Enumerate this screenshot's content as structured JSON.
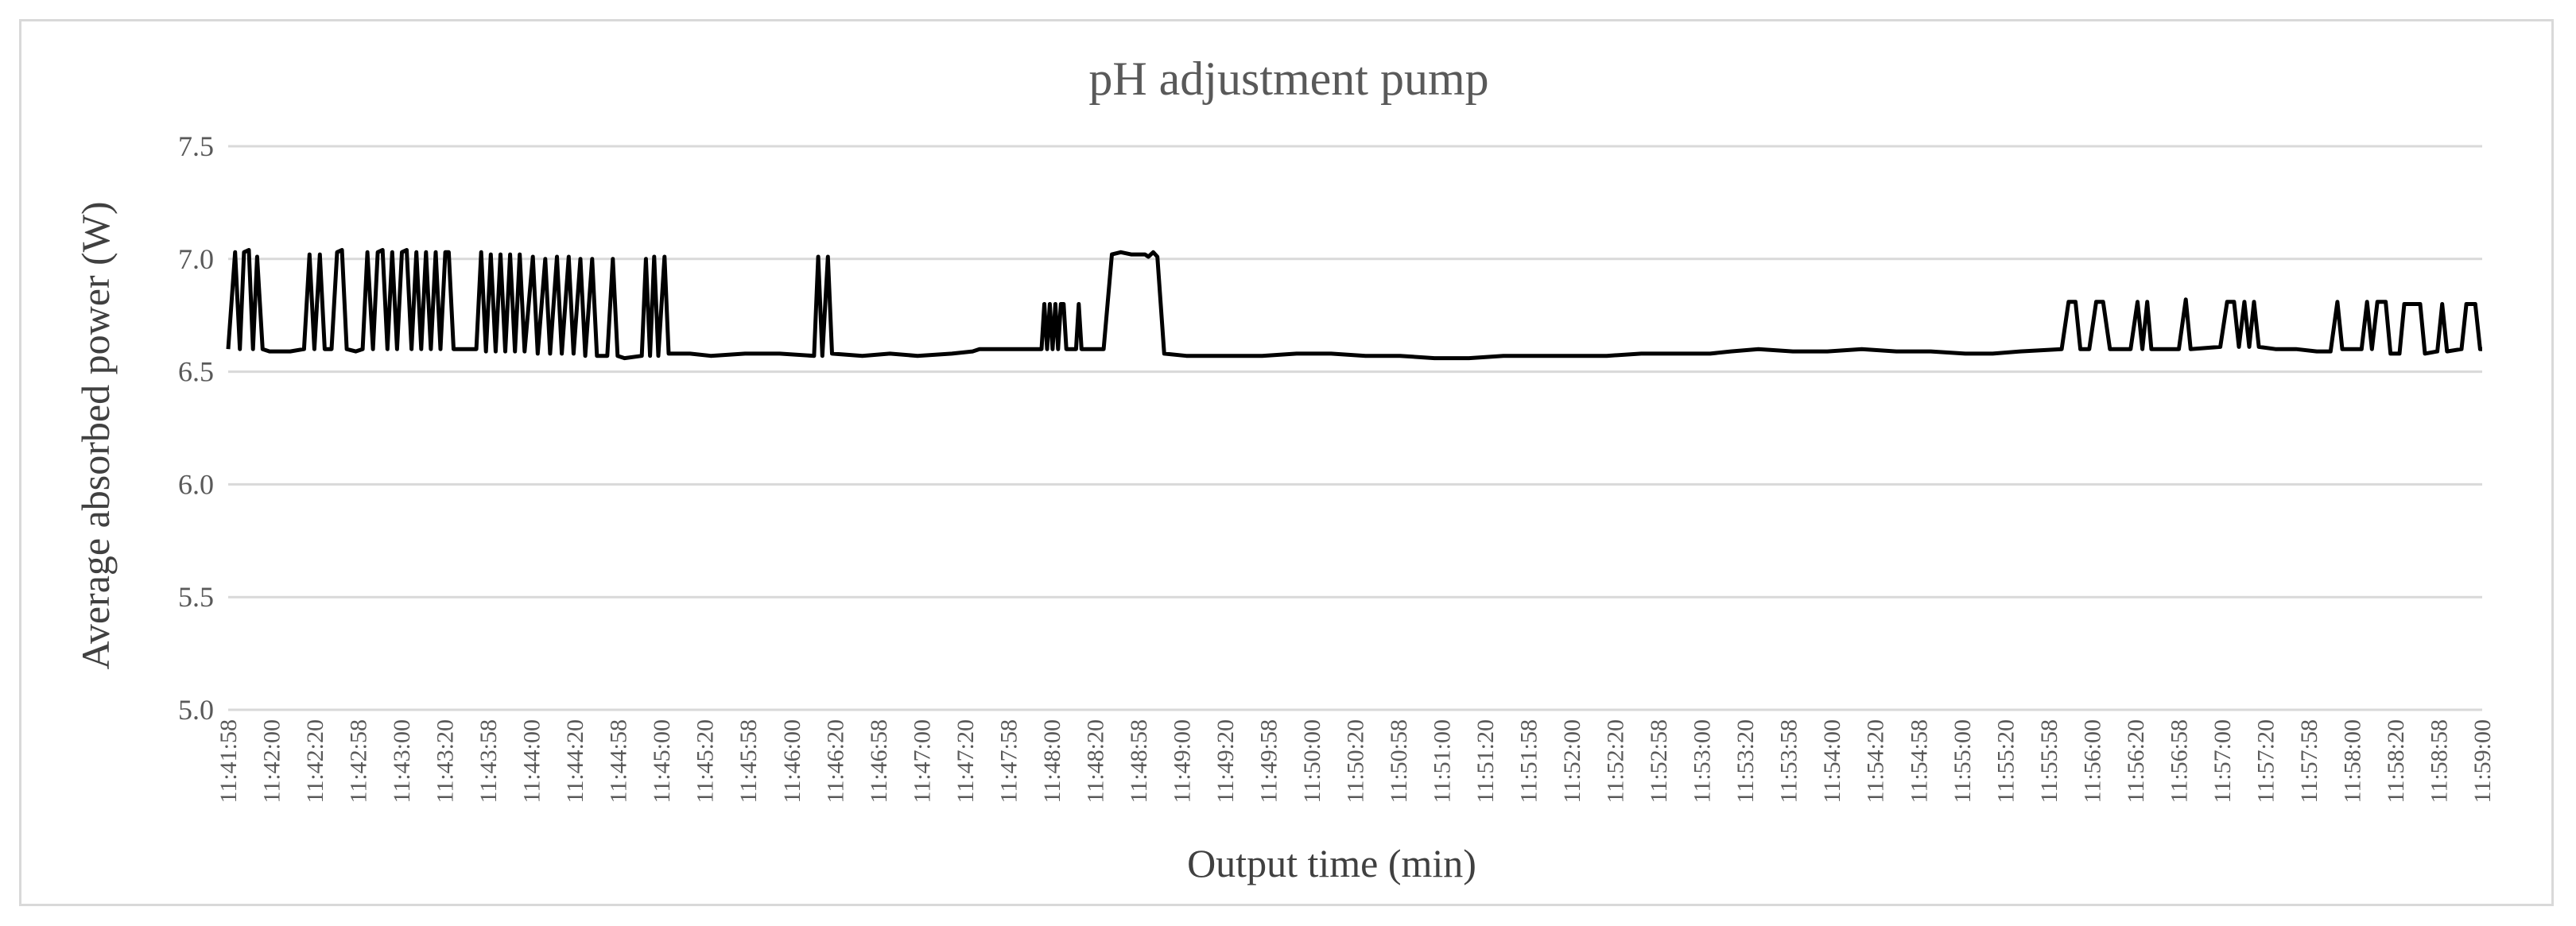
{
  "chart_data": {
    "type": "line",
    "title": "pH adjustment pump",
    "xlabel": "Output time (min)",
    "ylabel": "Average absorbed power (W)",
    "ylim": [
      5.0,
      7.5
    ],
    "yticks": [
      "5.0",
      "5.5",
      "6.0",
      "6.5",
      "7.0",
      "7.5"
    ],
    "grid": true,
    "legend": "none",
    "x_tick_labels": [
      "11:41:58",
      "11:42:00",
      "11:42:20",
      "11:42:58",
      "11:43:00",
      "11:43:20",
      "11:43:58",
      "11:44:00",
      "11:44:20",
      "11:44:58",
      "11:45:00",
      "11:45:20",
      "11:45:58",
      "11:46:00",
      "11:46:20",
      "11:46:58",
      "11:47:00",
      "11:47:20",
      "11:47:58",
      "11:48:00",
      "11:48:20",
      "11:48:58",
      "11:49:00",
      "11:49:20",
      "11:49:58",
      "11:50:00",
      "11:50:20",
      "11:50:58",
      "11:51:00",
      "11:51:20",
      "11:51:58",
      "11:52:00",
      "11:52:20",
      "11:52:58",
      "11:53:00",
      "11:53:20",
      "11:53:58",
      "11:54:00",
      "11:54:20",
      "11:54:58",
      "11:55:00",
      "11:55:20",
      "11:55:58",
      "11:56:00",
      "11:56:20",
      "11:56:58",
      "11:57:00",
      "11:57:20",
      "11:57:58",
      "11:58:00",
      "11:58:20",
      "11:58:58",
      "11:59:00"
    ],
    "series": [
      {
        "points": [
          [
            0.0,
            6.6
          ],
          [
            0.1,
            7.03
          ],
          [
            0.17,
            6.6
          ],
          [
            0.23,
            7.03
          ],
          [
            0.3,
            7.04
          ],
          [
            0.36,
            6.6
          ],
          [
            0.42,
            7.01
          ],
          [
            0.5,
            6.6
          ],
          [
            0.6,
            6.59
          ],
          [
            0.9,
            6.59
          ],
          [
            1.1,
            6.6
          ],
          [
            1.18,
            7.02
          ],
          [
            1.25,
            6.6
          ],
          [
            1.33,
            7.02
          ],
          [
            1.4,
            6.6
          ],
          [
            1.5,
            6.6
          ],
          [
            1.58,
            7.03
          ],
          [
            1.65,
            7.04
          ],
          [
            1.72,
            6.6
          ],
          [
            1.85,
            6.59
          ],
          [
            1.95,
            6.6
          ],
          [
            2.02,
            7.03
          ],
          [
            2.1,
            6.6
          ],
          [
            2.17,
            7.03
          ],
          [
            2.24,
            7.04
          ],
          [
            2.31,
            6.6
          ],
          [
            2.38,
            7.03
          ],
          [
            2.45,
            6.6
          ],
          [
            2.52,
            7.03
          ],
          [
            2.59,
            7.04
          ],
          [
            2.66,
            6.6
          ],
          [
            2.73,
            7.03
          ],
          [
            2.8,
            6.6
          ],
          [
            2.87,
            7.03
          ],
          [
            2.94,
            6.6
          ],
          [
            3.01,
            7.03
          ],
          [
            3.08,
            6.6
          ],
          [
            3.15,
            7.03
          ],
          [
            3.2,
            7.03
          ],
          [
            3.27,
            6.6
          ],
          [
            3.6,
            6.6
          ],
          [
            3.67,
            7.03
          ],
          [
            3.74,
            6.59
          ],
          [
            3.81,
            7.02
          ],
          [
            3.88,
            6.59
          ],
          [
            3.95,
            7.02
          ],
          [
            4.02,
            6.59
          ],
          [
            4.09,
            7.02
          ],
          [
            4.16,
            6.59
          ],
          [
            4.23,
            7.02
          ],
          [
            4.3,
            6.59
          ],
          [
            4.42,
            7.01
          ],
          [
            4.49,
            6.58
          ],
          [
            4.6,
            7.0
          ],
          [
            4.67,
            6.58
          ],
          [
            4.77,
            7.01
          ],
          [
            4.84,
            6.58
          ],
          [
            4.94,
            7.01
          ],
          [
            5.01,
            6.58
          ],
          [
            5.11,
            7.0
          ],
          [
            5.18,
            6.57
          ],
          [
            5.28,
            7.0
          ],
          [
            5.35,
            6.57
          ],
          [
            5.5,
            6.57
          ],
          [
            5.58,
            7.0
          ],
          [
            5.65,
            6.57
          ],
          [
            5.75,
            6.56
          ],
          [
            6.0,
            6.57
          ],
          [
            6.06,
            7.0
          ],
          [
            6.12,
            6.57
          ],
          [
            6.18,
            7.01
          ],
          [
            6.24,
            6.57
          ],
          [
            6.33,
            7.01
          ],
          [
            6.39,
            6.58
          ],
          [
            6.7,
            6.58
          ],
          [
            7.0,
            6.57
          ],
          [
            7.5,
            6.58
          ],
          [
            8.0,
            6.58
          ],
          [
            8.5,
            6.57
          ],
          [
            8.56,
            7.01
          ],
          [
            8.62,
            6.57
          ],
          [
            8.7,
            7.01
          ],
          [
            8.76,
            6.58
          ],
          [
            9.2,
            6.57
          ],
          [
            9.6,
            6.58
          ],
          [
            10.0,
            6.57
          ],
          [
            10.5,
            6.58
          ],
          [
            10.8,
            6.59
          ],
          [
            10.9,
            6.6
          ],
          [
            11.8,
            6.6
          ],
          [
            11.84,
            6.8
          ],
          [
            11.88,
            6.6
          ],
          [
            11.92,
            6.8
          ],
          [
            11.96,
            6.6
          ],
          [
            12.0,
            6.8
          ],
          [
            12.04,
            6.6
          ],
          [
            12.08,
            6.8
          ],
          [
            12.12,
            6.8
          ],
          [
            12.16,
            6.6
          ],
          [
            12.3,
            6.6
          ],
          [
            12.34,
            6.8
          ],
          [
            12.38,
            6.6
          ],
          [
            12.7,
            6.6
          ],
          [
            12.82,
            7.02
          ],
          [
            12.95,
            7.03
          ],
          [
            13.1,
            7.02
          ],
          [
            13.3,
            7.02
          ],
          [
            13.35,
            7.01
          ],
          [
            13.42,
            7.03
          ],
          [
            13.48,
            7.01
          ],
          [
            13.58,
            6.58
          ],
          [
            13.9,
            6.57
          ],
          [
            14.5,
            6.57
          ],
          [
            15.0,
            6.57
          ],
          [
            15.5,
            6.58
          ],
          [
            16.0,
            6.58
          ],
          [
            16.5,
            6.57
          ],
          [
            17.0,
            6.57
          ],
          [
            17.5,
            6.56
          ],
          [
            18.0,
            6.56
          ],
          [
            18.5,
            6.57
          ],
          [
            19.0,
            6.57
          ],
          [
            19.5,
            6.57
          ],
          [
            20.0,
            6.57
          ],
          [
            20.5,
            6.58
          ],
          [
            21.0,
            6.58
          ],
          [
            21.5,
            6.58
          ],
          [
            21.8,
            6.59
          ],
          [
            22.2,
            6.6
          ],
          [
            22.7,
            6.59
          ],
          [
            23.2,
            6.59
          ],
          [
            23.7,
            6.6
          ],
          [
            24.2,
            6.59
          ],
          [
            24.7,
            6.59
          ],
          [
            25.2,
            6.58
          ],
          [
            25.6,
            6.58
          ],
          [
            26.0,
            6.59
          ],
          [
            26.6,
            6.6
          ],
          [
            26.7,
            6.81
          ],
          [
            26.8,
            6.81
          ],
          [
            26.87,
            6.6
          ],
          [
            27.0,
            6.6
          ],
          [
            27.1,
            6.81
          ],
          [
            27.2,
            6.81
          ],
          [
            27.3,
            6.6
          ],
          [
            27.6,
            6.6
          ],
          [
            27.7,
            6.81
          ],
          [
            27.77,
            6.6
          ],
          [
            27.84,
            6.81
          ],
          [
            27.9,
            6.6
          ],
          [
            28.3,
            6.6
          ],
          [
            28.4,
            6.82
          ],
          [
            28.47,
            6.6
          ],
          [
            28.9,
            6.61
          ],
          [
            29.0,
            6.81
          ],
          [
            29.1,
            6.81
          ],
          [
            29.17,
            6.61
          ],
          [
            29.25,
            6.81
          ],
          [
            29.32,
            6.61
          ],
          [
            29.39,
            6.81
          ],
          [
            29.46,
            6.61
          ],
          [
            29.7,
            6.6
          ],
          [
            30.0,
            6.6
          ],
          [
            30.3,
            6.59
          ],
          [
            30.5,
            6.59
          ],
          [
            30.6,
            6.81
          ],
          [
            30.67,
            6.6
          ],
          [
            30.95,
            6.6
          ],
          [
            31.03,
            6.81
          ],
          [
            31.1,
            6.6
          ],
          [
            31.18,
            6.81
          ],
          [
            31.3,
            6.81
          ],
          [
            31.37,
            6.58
          ],
          [
            31.5,
            6.58
          ],
          [
            31.57,
            6.8
          ],
          [
            31.8,
            6.8
          ],
          [
            31.87,
            6.58
          ],
          [
            32.05,
            6.59
          ],
          [
            32.12,
            6.8
          ],
          [
            32.19,
            6.59
          ],
          [
            32.4,
            6.6
          ],
          [
            32.47,
            6.8
          ],
          [
            32.6,
            6.8
          ],
          [
            32.67,
            6.6
          ],
          [
            32.7,
            6.6
          ]
        ]
      }
    ]
  }
}
